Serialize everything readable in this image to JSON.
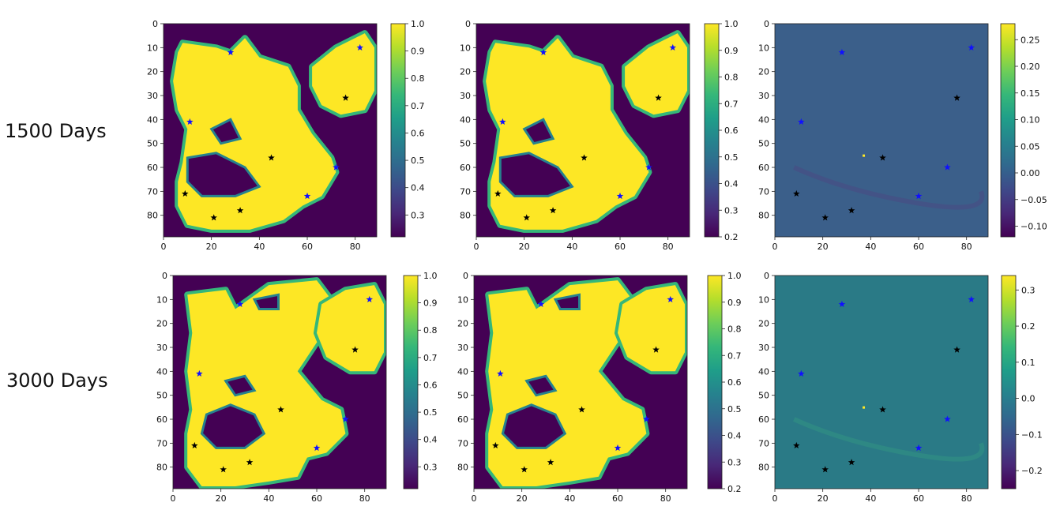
{
  "row_labels": [
    "1500 Days",
    "3000 Days"
  ],
  "colors": {
    "viridis": [
      "#440154",
      "#482878",
      "#3e4989",
      "#31688e",
      "#26828e",
      "#1f9e89",
      "#35b779",
      "#6ece58",
      "#b5de2b",
      "#fde725"
    ],
    "star_black": "#000000",
    "star_blue": "#1010ff"
  },
  "chart_data": [
    {
      "type": "heatmap",
      "id": "r1c1",
      "x_ticks": [
        0,
        20,
        40,
        60,
        80
      ],
      "y_ticks": [
        0,
        10,
        20,
        30,
        40,
        50,
        60,
        70,
        80
      ],
      "xlim": [
        0,
        89
      ],
      "ylim": [
        89,
        0
      ],
      "colorbar": {
        "min": 0.22,
        "max": 1.0,
        "ticks": [
          0.3,
          0.4,
          0.5,
          0.6,
          0.7,
          0.8,
          0.9,
          1.0
        ]
      },
      "black_stars": [
        [
          76,
          31
        ],
        [
          45,
          56
        ],
        [
          9,
          71
        ],
        [
          21,
          81
        ],
        [
          32,
          78
        ]
      ],
      "blue_stars": [
        [
          28,
          12
        ],
        [
          82,
          10
        ],
        [
          11,
          41
        ],
        [
          72,
          60
        ],
        [
          60,
          72
        ]
      ]
    },
    {
      "type": "heatmap",
      "id": "r1c2",
      "x_ticks": [
        0,
        20,
        40,
        60,
        80
      ],
      "y_ticks": [
        0,
        10,
        20,
        30,
        40,
        50,
        60,
        70,
        80
      ],
      "xlim": [
        0,
        89
      ],
      "ylim": [
        89,
        0
      ],
      "colorbar": {
        "min": 0.2,
        "max": 1.0,
        "ticks": [
          0.2,
          0.3,
          0.4,
          0.5,
          0.6,
          0.7,
          0.8,
          0.9,
          1.0
        ]
      },
      "black_stars": [
        [
          76,
          31
        ],
        [
          45,
          56
        ],
        [
          9,
          71
        ],
        [
          21,
          81
        ],
        [
          32,
          78
        ]
      ],
      "blue_stars": [
        [
          28,
          12
        ],
        [
          82,
          10
        ],
        [
          11,
          41
        ],
        [
          72,
          60
        ],
        [
          60,
          72
        ]
      ]
    },
    {
      "type": "heatmap",
      "id": "r1c3",
      "x_ticks": [
        0,
        20,
        40,
        60,
        80
      ],
      "y_ticks": [
        0,
        10,
        20,
        30,
        40,
        50,
        60,
        70,
        80
      ],
      "xlim": [
        0,
        89
      ],
      "ylim": [
        89,
        0
      ],
      "colorbar": {
        "min": -0.12,
        "max": 0.28,
        "ticks": [
          -0.1,
          -0.05,
          0.0,
          0.05,
          0.1,
          0.15,
          0.2,
          0.25
        ]
      },
      "black_stars": [
        [
          76,
          31
        ],
        [
          45,
          56
        ],
        [
          9,
          71
        ],
        [
          21,
          81
        ],
        [
          32,
          78
        ]
      ],
      "blue_stars": [
        [
          28,
          12
        ],
        [
          82,
          10
        ],
        [
          11,
          41
        ],
        [
          72,
          60
        ],
        [
          60,
          72
        ]
      ]
    },
    {
      "type": "heatmap",
      "id": "r2c1",
      "x_ticks": [
        0,
        20,
        40,
        60,
        80
      ],
      "y_ticks": [
        0,
        10,
        20,
        30,
        40,
        50,
        60,
        70,
        80
      ],
      "xlim": [
        0,
        89
      ],
      "ylim": [
        89,
        0
      ],
      "colorbar": {
        "min": 0.22,
        "max": 1.0,
        "ticks": [
          0.3,
          0.4,
          0.5,
          0.6,
          0.7,
          0.8,
          0.9,
          1.0
        ]
      },
      "black_stars": [
        [
          76,
          31
        ],
        [
          45,
          56
        ],
        [
          9,
          71
        ],
        [
          21,
          81
        ],
        [
          32,
          78
        ]
      ],
      "blue_stars": [
        [
          28,
          12
        ],
        [
          82,
          10
        ],
        [
          11,
          41
        ],
        [
          72,
          60
        ],
        [
          60,
          72
        ]
      ]
    },
    {
      "type": "heatmap",
      "id": "r2c2",
      "x_ticks": [
        0,
        20,
        40,
        60,
        80
      ],
      "y_ticks": [
        0,
        10,
        20,
        30,
        40,
        50,
        60,
        70,
        80
      ],
      "xlim": [
        0,
        89
      ],
      "ylim": [
        89,
        0
      ],
      "colorbar": {
        "min": 0.2,
        "max": 1.0,
        "ticks": [
          0.2,
          0.3,
          0.4,
          0.5,
          0.6,
          0.7,
          0.8,
          0.9,
          1.0
        ]
      },
      "black_stars": [
        [
          76,
          31
        ],
        [
          45,
          56
        ],
        [
          9,
          71
        ],
        [
          21,
          81
        ],
        [
          32,
          78
        ]
      ],
      "blue_stars": [
        [
          28,
          12
        ],
        [
          82,
          10
        ],
        [
          11,
          41
        ],
        [
          72,
          60
        ],
        [
          60,
          72
        ]
      ]
    },
    {
      "type": "heatmap",
      "id": "r2c3",
      "x_ticks": [
        0,
        20,
        40,
        60,
        80
      ],
      "y_ticks": [
        0,
        10,
        20,
        30,
        40,
        50,
        60,
        70,
        80
      ],
      "xlim": [
        0,
        89
      ],
      "ylim": [
        89,
        0
      ],
      "colorbar": {
        "min": -0.25,
        "max": 0.34,
        "ticks": [
          -0.2,
          -0.1,
          0.0,
          0.1,
          0.2,
          0.3
        ]
      },
      "black_stars": [
        [
          76,
          31
        ],
        [
          45,
          56
        ],
        [
          9,
          71
        ],
        [
          21,
          81
        ],
        [
          32,
          78
        ]
      ],
      "blue_stars": [
        [
          28,
          12
        ],
        [
          82,
          10
        ],
        [
          11,
          41
        ],
        [
          72,
          60
        ],
        [
          60,
          72
        ]
      ]
    }
  ]
}
